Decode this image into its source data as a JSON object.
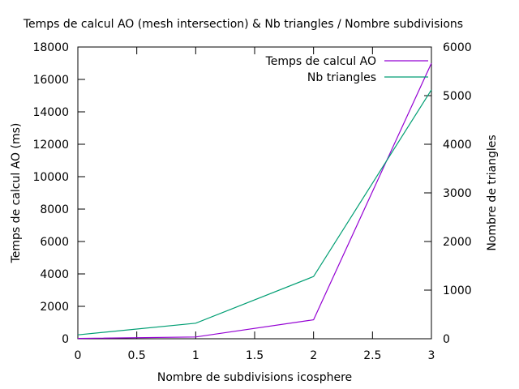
{
  "chart_data": {
    "type": "line",
    "title": "Temps de calcul AO (mesh intersection) & Nb triangles / Nombre subdivisions",
    "xlabel": "Nombre de subdivisions icosphere",
    "ylabel": "Temps de calcul AO (ms)",
    "y2label": "Nombre de triangles",
    "xlim": [
      0,
      3
    ],
    "ylim": [
      0,
      18000
    ],
    "y2lim": [
      0,
      6000
    ],
    "x_ticks": [
      0,
      0.5,
      1,
      1.5,
      2,
      2.5,
      3
    ],
    "x_tick_labels": [
      "0",
      "0.5",
      "1",
      "1.5",
      "2",
      "2.5",
      "3"
    ],
    "y_ticks": [
      0,
      2000,
      4000,
      6000,
      8000,
      10000,
      12000,
      14000,
      16000,
      18000
    ],
    "y_tick_labels": [
      "0",
      "2000",
      "4000",
      "6000",
      "8000",
      "10000",
      "12000",
      "14000",
      "16000",
      "18000"
    ],
    "y2_ticks": [
      0,
      1000,
      2000,
      3000,
      4000,
      5000,
      6000
    ],
    "y2_tick_labels": [
      "0",
      "1000",
      "2000",
      "3000",
      "4000",
      "5000",
      "6000"
    ],
    "grid": false,
    "legend_position": "top-right",
    "series": [
      {
        "name": "Temps de calcul AO",
        "axis": "left",
        "color": "#9400d3",
        "x": [
          0,
          1,
          2,
          3
        ],
        "values": [
          20,
          110,
          1170,
          17000
        ]
      },
      {
        "name": "Nb triangles",
        "axis": "right",
        "color": "#009e73",
        "x": [
          0,
          1,
          2,
          3
        ],
        "values": [
          80,
          320,
          1280,
          5120
        ]
      }
    ]
  }
}
